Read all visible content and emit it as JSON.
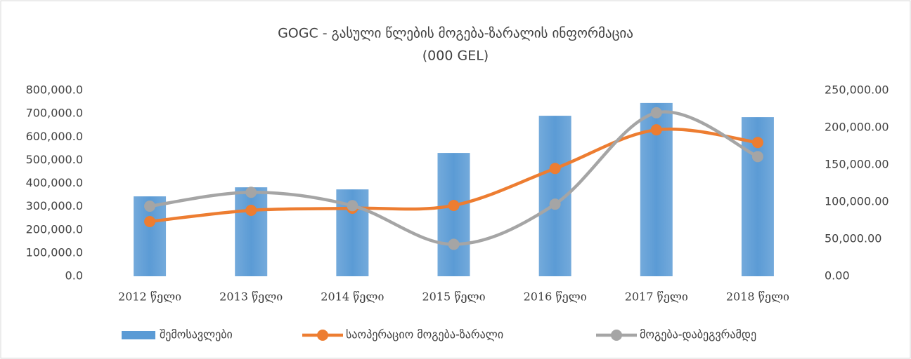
{
  "chart_data": {
    "type": "bar-line",
    "title": "GOGC - გასული წლების მოგება-ზარალის ინფორმაცია",
    "subtitle": "(000 GEL)",
    "categories": [
      "2012 წელი",
      "2013 წელი",
      "2014 წელი",
      "2015 წელი",
      "2016 წელი",
      "2017 წელი",
      "2018 წელი"
    ],
    "series": [
      {
        "name": "შემოსავლები",
        "type": "bar",
        "color": "#5b9bd5",
        "values": [
          344000,
          383000,
          374000,
          531000,
          691000,
          746000,
          685000
        ]
      },
      {
        "name": "საოპერაციო მოგება-ზარალი",
        "type": "line",
        "axis": "y2",
        "color": "#ed7d31",
        "values": [
          73600,
          88700,
          91500,
          95300,
          145000,
          197000,
          180000
        ]
      },
      {
        "name": "მოგება-დაბეგვრამდე",
        "type": "line",
        "axis": "y2",
        "color": "#a5a5a5",
        "values": [
          94300,
          113000,
          95000,
          43000,
          97000,
          220000,
          161000
        ]
      }
    ],
    "ylim": [
      0,
      800000
    ],
    "yticks": [
      {
        "value": 0,
        "label": "0.0"
      },
      {
        "value": 100000,
        "label": "100,000.0"
      },
      {
        "value": 200000,
        "label": "200,000.0"
      },
      {
        "value": 300000,
        "label": "300,000.0"
      },
      {
        "value": 400000,
        "label": "400,000.0"
      },
      {
        "value": 500000,
        "label": "500,000.0"
      },
      {
        "value": 600000,
        "label": "600,000.0"
      },
      {
        "value": 700000,
        "label": "700,000.0"
      },
      {
        "value": 800000,
        "label": "800,000.0"
      }
    ],
    "y2lim": [
      0,
      250000
    ],
    "y2ticks": [
      {
        "value": 0,
        "label": "0.00"
      },
      {
        "value": 50000,
        "label": "50,000.00"
      },
      {
        "value": 100000,
        "label": "100,000.00"
      },
      {
        "value": 150000,
        "label": "150,000.00"
      },
      {
        "value": 200000,
        "label": "200,000.00"
      },
      {
        "value": 250000,
        "label": "250,000.00"
      }
    ],
    "smooth": true,
    "legend": "bottom"
  }
}
